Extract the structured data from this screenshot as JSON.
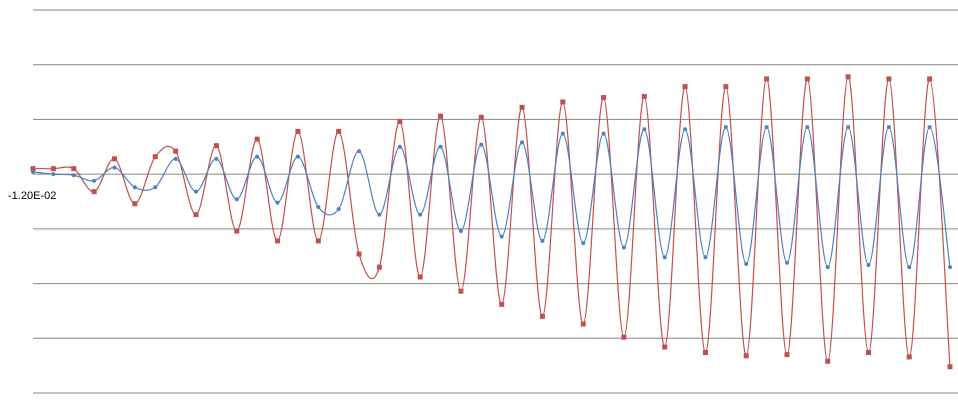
{
  "chart_data": {
    "type": "line",
    "smooth": true,
    "ylim": [
      -0.03,
      0.005
    ],
    "gridlines": [
      0.005,
      0,
      -0.005,
      -0.01,
      -0.015,
      -0.02,
      -0.025,
      -0.03
    ],
    "axis_label": {
      "value": -0.012,
      "label": "-1.20E-02"
    },
    "series": [
      {
        "color": "#c0504d",
        "marker": "square",
        "values": [
          -0.0095,
          -0.0095,
          -0.0095,
          -0.0116,
          -0.0086,
          -0.0127,
          -0.0084,
          -0.0079,
          -0.0137,
          -0.0074,
          -0.0152,
          -0.0068,
          -0.0161,
          -0.0061,
          -0.0161,
          -0.0061,
          -0.0173,
          -0.0185,
          -0.0052,
          -0.0194,
          -0.0047,
          -0.0207,
          -0.0048,
          -0.0219,
          -0.0039,
          -0.023,
          -0.0034,
          -0.0237,
          -0.003,
          -0.0249,
          -0.0029,
          -0.0258,
          -0.002,
          -0.0263,
          -0.002,
          -0.0266,
          -0.0013,
          -0.0265,
          -0.0013,
          -0.0271,
          -0.0011,
          -0.0263,
          -0.0013,
          -0.0267,
          -0.0013,
          -0.0276
        ]
      },
      {
        "color": "#4f81bd",
        "marker": "circle",
        "values": [
          -0.0098,
          -0.01,
          -0.0101,
          -0.0106,
          -0.0094,
          -0.0112,
          -0.0112,
          -0.0086,
          -0.0116,
          -0.0086,
          -0.0123,
          -0.0084,
          -0.0126,
          -0.0084,
          -0.013,
          -0.0132,
          -0.0079,
          -0.0137,
          -0.0075,
          -0.0137,
          -0.0075,
          -0.0152,
          -0.0073,
          -0.0157,
          -0.0071,
          -0.0161,
          -0.0063,
          -0.0163,
          -0.0063,
          -0.0167,
          -0.0059,
          -0.0176,
          -0.0059,
          -0.0176,
          -0.0057,
          -0.0182,
          -0.0057,
          -0.0181,
          -0.0057,
          -0.0185,
          -0.0057,
          -0.0183,
          -0.0057,
          -0.0185,
          -0.0057,
          -0.0185
        ]
      }
    ]
  }
}
